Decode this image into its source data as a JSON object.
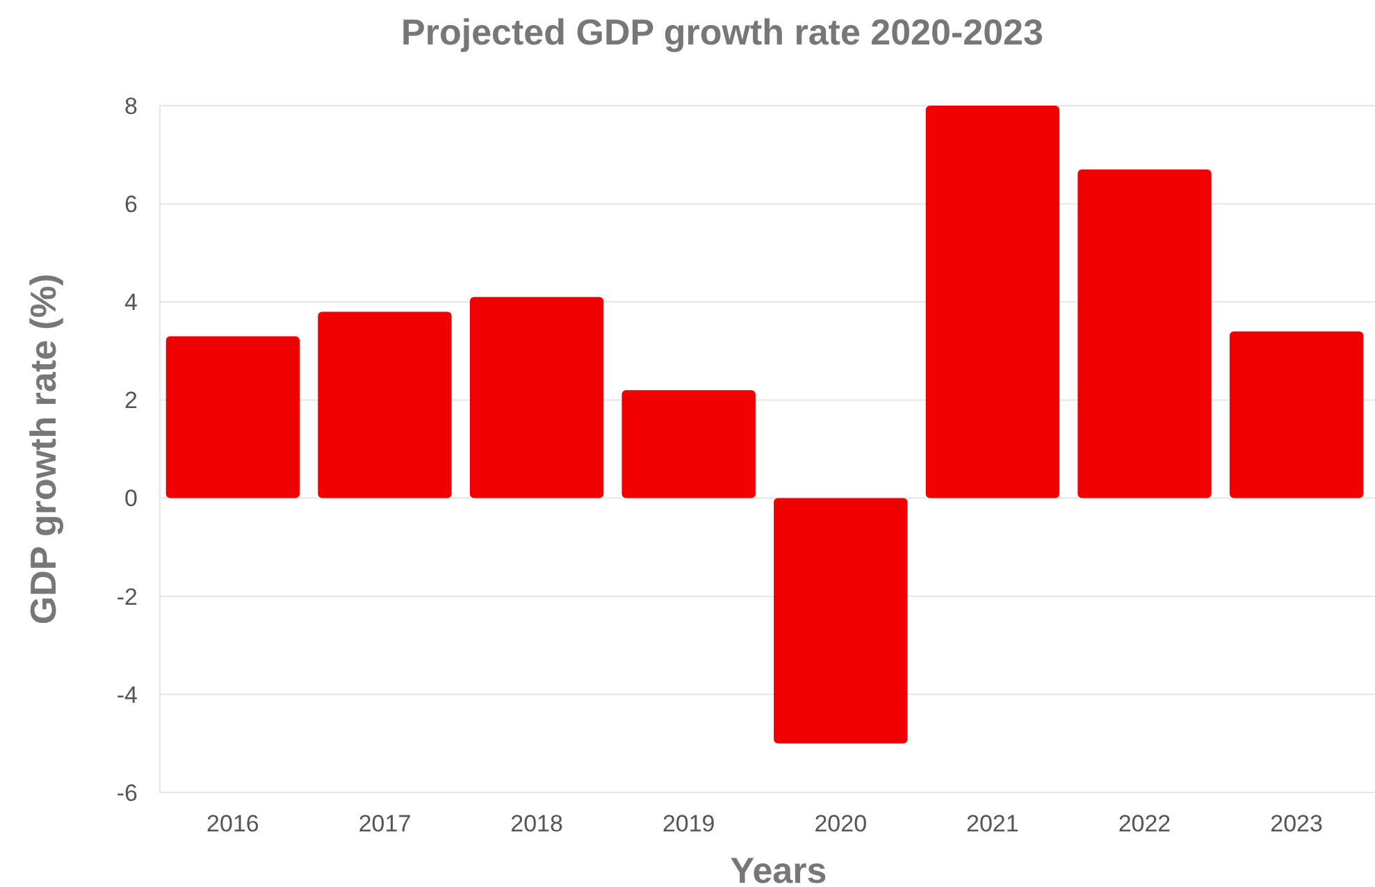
{
  "chart_data": {
    "type": "bar",
    "title": "Projected GDP growth rate 2020-2023",
    "xlabel": "Years",
    "ylabel": "GDP growth rate (%)",
    "categories": [
      "2016",
      "2017",
      "2018",
      "2019",
      "2020",
      "2021",
      "2022",
      "2023"
    ],
    "values": [
      3.3,
      3.8,
      4.1,
      2.2,
      -5.0,
      8.0,
      6.7,
      3.4
    ],
    "color": "#f00000",
    "ylim": [
      -6,
      8
    ],
    "yticks": [
      -6,
      -4,
      -2,
      0,
      2,
      4,
      6,
      8
    ],
    "grid": "y"
  }
}
